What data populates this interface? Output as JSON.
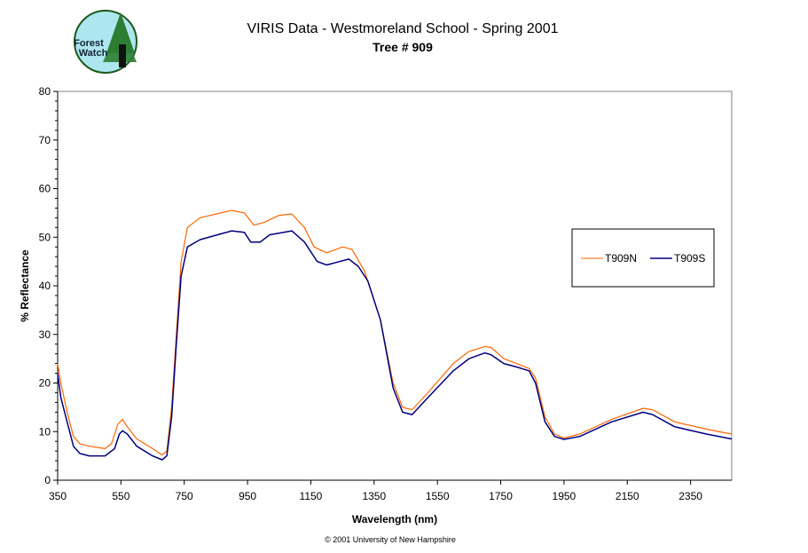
{
  "logo": {
    "text": "Forest Watch"
  },
  "chart_data": {
    "type": "line",
    "title": "VIRIS Data - Westmoreland School - Spring 2001",
    "subtitle": "Tree # 909",
    "xlabel": "Wavelength (nm)",
    "ylabel": "% Reflectance",
    "xlim": [
      350,
      2480
    ],
    "ylim": [
      0,
      80
    ],
    "xticks": [
      350,
      550,
      750,
      950,
      1150,
      1350,
      1550,
      1750,
      1950,
      2150,
      2350
    ],
    "yticks": [
      0,
      10,
      20,
      30,
      40,
      50,
      60,
      70,
      80
    ],
    "grid": false,
    "legend_placement": "right",
    "footer": "© 2001 University of New Hampshire",
    "series": [
      {
        "name": "T909N",
        "color": "#ff6600",
        "x": [
          350,
          360,
          380,
          400,
          420,
          450,
          500,
          520,
          540,
          555,
          570,
          600,
          650,
          680,
          695,
          710,
          725,
          740,
          760,
          800,
          900,
          940,
          970,
          1000,
          1050,
          1090,
          1130,
          1160,
          1200,
          1250,
          1280,
          1320,
          1370,
          1410,
          1440,
          1470,
          1520,
          1600,
          1650,
          1700,
          1720,
          1760,
          1800,
          1840,
          1860,
          1890,
          1920,
          1950,
          2000,
          2100,
          2200,
          2230,
          2300,
          2400,
          2480
        ],
        "y": [
          24,
          20,
          14,
          9,
          7.5,
          7,
          6.5,
          7.5,
          11.5,
          12.5,
          11,
          8.5,
          6.5,
          5.2,
          6,
          15,
          30,
          45,
          52,
          54,
          55.5,
          55,
          52.5,
          53,
          54.5,
          54.8,
          52,
          48,
          46.8,
          48,
          47.5,
          43,
          33,
          20,
          15,
          14.5,
          18,
          24,
          26.5,
          27.5,
          27.3,
          25,
          24,
          23,
          21,
          13,
          9.5,
          8.7,
          9.5,
          12.5,
          14.8,
          14.5,
          12,
          10.5,
          9.5
        ]
      },
      {
        "name": "T909S",
        "color": "#000080",
        "x": [
          350,
          360,
          380,
          400,
          420,
          450,
          500,
          530,
          545,
          555,
          570,
          600,
          650,
          680,
          695,
          710,
          725,
          740,
          760,
          800,
          900,
          940,
          960,
          990,
          1020,
          1090,
          1130,
          1170,
          1200,
          1270,
          1300,
          1330,
          1370,
          1410,
          1440,
          1470,
          1520,
          1600,
          1650,
          1700,
          1720,
          1760,
          1800,
          1840,
          1860,
          1890,
          1920,
          1950,
          2000,
          2100,
          2200,
          2230,
          2300,
          2400,
          2480
        ],
        "y": [
          22,
          17,
          12,
          7,
          5.5,
          5,
          5,
          6.5,
          9.5,
          10.2,
          9.5,
          7,
          5,
          4.2,
          5,
          13,
          28,
          42,
          48,
          49.5,
          51.3,
          51,
          49,
          49,
          50.5,
          51.3,
          49,
          45,
          44.3,
          45.5,
          44,
          41,
          33,
          19,
          14,
          13.5,
          17,
          22.5,
          25,
          26.2,
          25.8,
          24,
          23.3,
          22.5,
          20,
          12,
          9,
          8.4,
          9,
          12,
          14,
          13.5,
          11,
          9.5,
          8.5
        ]
      }
    ]
  }
}
